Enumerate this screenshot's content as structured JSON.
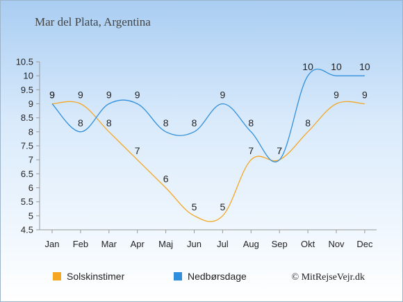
{
  "chart_data": {
    "type": "line",
    "title": "Mar del Plata, Argentina",
    "categories": [
      "Jan",
      "Feb",
      "Mar",
      "Apr",
      "Maj",
      "Jun",
      "Jul",
      "Aug",
      "Sep",
      "Okt",
      "Nov",
      "Dec"
    ],
    "series": [
      {
        "name": "Solskinstimer",
        "color": "#f5a623",
        "values": [
          9,
          9,
          8,
          7,
          6,
          5,
          5,
          7,
          7,
          8,
          9,
          9
        ]
      },
      {
        "name": "Nedbørsdage",
        "color": "#2f8fdc",
        "values": [
          9,
          8,
          9,
          9,
          8,
          8,
          9,
          8,
          7,
          10,
          10,
          10
        ]
      }
    ],
    "yticks": [
      "4.5",
      "5",
      "5.5",
      "6",
      "6.5",
      "7",
      "7.5",
      "8",
      "8.5",
      "9",
      "9.5",
      "10",
      "10.5"
    ],
    "ylim": [
      4.5,
      10.5
    ],
    "grid": false,
    "legend_position": "bottom-left"
  },
  "credit": "© MitRejseVejr.dk"
}
